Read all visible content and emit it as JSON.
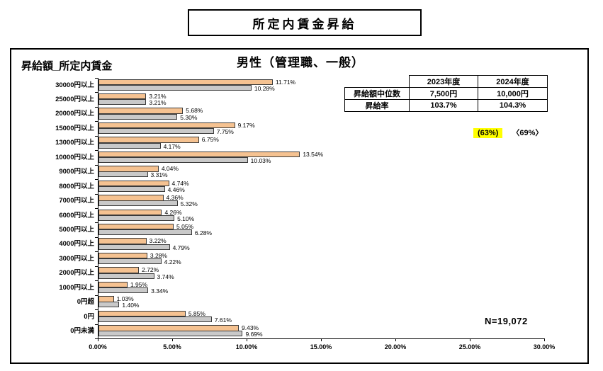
{
  "page_title": "所定内賃金昇給",
  "panel": {
    "left_label": "昇給額_所定内賃金",
    "chart_title": "男性（管理職、一般）",
    "n_label": "N=19,072",
    "annotation": {
      "highlight": "(63%)",
      "secondary": "〈69%〉"
    }
  },
  "summary_table": {
    "col_headers": [
      "2023年度",
      "2024年度"
    ],
    "rows": [
      {
        "label": "昇給額中位数",
        "values": [
          "7,500円",
          "10,000円"
        ]
      },
      {
        "label": "昇給率",
        "values": [
          "103.7%",
          "104.3%"
        ]
      }
    ]
  },
  "chart_data": {
    "type": "bar",
    "orientation": "horizontal",
    "title": "男性（管理職、一般）",
    "categories": [
      "30000円以上",
      "25000円以上",
      "20000円以上",
      "15000円以上",
      "13000円以上",
      "10000円以上",
      "9000円以上",
      "8000円以上",
      "7000円以上",
      "6000円以上",
      "5000円以上",
      "4000円以上",
      "3000円以上",
      "2000円以上",
      "1000円以上",
      "0円超",
      "0円",
      "0円未満"
    ],
    "series": [
      {
        "name": "orange_bar",
        "color": "#F5C291",
        "values": [
          11.71,
          3.21,
          5.68,
          9.17,
          6.75,
          13.54,
          4.04,
          4.74,
          4.36,
          4.26,
          5.05,
          3.22,
          3.28,
          2.72,
          1.95,
          1.03,
          5.85,
          9.43
        ]
      },
      {
        "name": "gray_bar",
        "color": "#C9C9C9",
        "values": [
          10.28,
          3.21,
          5.3,
          7.75,
          4.17,
          10.03,
          3.31,
          4.46,
          5.32,
          5.1,
          6.28,
          4.79,
          4.22,
          3.74,
          3.34,
          1.4,
          7.61,
          9.69
        ]
      }
    ],
    "xlim": [
      0,
      30
    ],
    "x_ticks": [
      "0.00%",
      "5.00%",
      "10.00%",
      "15.00%",
      "20.00%",
      "25.00%",
      "30.00%"
    ],
    "value_label_format": "two_decimals_percent",
    "grid": false,
    "legend": "none"
  },
  "colors": {
    "orange_fill": "#F5C291",
    "gray_fill": "#C9C9C9",
    "bar_border": "#3a3a3a",
    "highlight_bg": "#FFFF00",
    "text": "#000000"
  }
}
